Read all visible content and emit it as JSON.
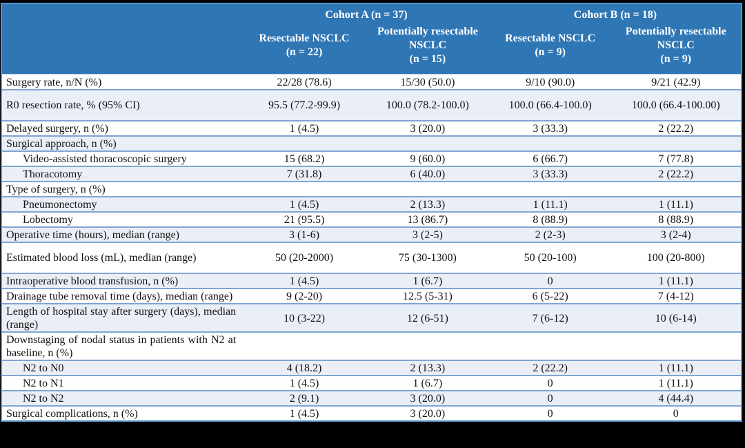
{
  "table": {
    "corner_label": "",
    "groups": [
      {
        "label": "Cohort A (n = 37)"
      },
      {
        "label": "Cohort B (n = 18)"
      }
    ],
    "columns": [
      {
        "label": "Resectable NSCLC\n(n = 22)"
      },
      {
        "label": "Potentially resectable NSCLC\n(n = 15)"
      },
      {
        "label": "Resectable NSCLC\n(n = 9)"
      },
      {
        "label": "Potentially resectable NSCLC\n(n = 9)"
      }
    ],
    "rows": [
      {
        "label": "Surgery rate, n/N (%)",
        "indent": false,
        "tall": false,
        "values": [
          "22/28 (78.6)",
          "15/30 (50.0)",
          "9/10 (90.0)",
          "9/21 (42.9)"
        ]
      },
      {
        "label": "R0 resection rate, % (95% CI)",
        "indent": false,
        "tall": true,
        "values": [
          "95.5 (77.2-99.9)",
          "100.0 (78.2-100.0)",
          "100.0 (66.4-100.0)",
          "100.0 (66.4-100.00)"
        ]
      },
      {
        "label": "Delayed surgery, n (%)",
        "indent": false,
        "tall": false,
        "values": [
          "1 (4.5)",
          "3 (20.0)",
          "3 (33.3)",
          "2 (22.2)"
        ]
      },
      {
        "label": "Surgical approach, n (%)",
        "indent": false,
        "tall": false,
        "values": [
          "",
          "",
          "",
          ""
        ]
      },
      {
        "label": "Video-assisted thoracoscopic surgery",
        "indent": true,
        "tall": false,
        "values": [
          "15 (68.2)",
          "9 (60.0)",
          "6 (66.7)",
          "7 (77.8)"
        ]
      },
      {
        "label": "Thoracotomy",
        "indent": true,
        "tall": false,
        "values": [
          "7 (31.8)",
          "6 (40.0)",
          "3 (33.3)",
          "2 (22.2)"
        ]
      },
      {
        "label": "Type of surgery, n (%)",
        "indent": false,
        "tall": false,
        "values": [
          "",
          "",
          "",
          ""
        ]
      },
      {
        "label": "Pneumonectomy",
        "indent": true,
        "tall": false,
        "values": [
          "1 (4.5)",
          "2 (13.3)",
          "1 (11.1)",
          "1 (11.1)"
        ]
      },
      {
        "label": "Lobectomy",
        "indent": true,
        "tall": false,
        "values": [
          "21 (95.5)",
          "13 (86.7)",
          "8 (88.9)",
          "8 (88.9)"
        ]
      },
      {
        "label": "Operative time (hours), median (range)",
        "indent": false,
        "tall": false,
        "values": [
          "3 (1-6)",
          "3 (2-5)",
          "2 (2-3)",
          "3 (2-4)"
        ]
      },
      {
        "label": "Estimated blood loss (mL), median (range)",
        "indent": false,
        "tall": true,
        "values": [
          "50 (20-2000)",
          "75 (30-1300)",
          "50 (20-100)",
          "100 (20-800)"
        ]
      },
      {
        "label": "Intraoperative blood transfusion, n (%)",
        "indent": false,
        "tall": false,
        "values": [
          "1 (4.5)",
          "1 (6.7)",
          "0",
          "1 (11.1)"
        ]
      },
      {
        "label": "Drainage tube removal time (days), median (range)",
        "indent": false,
        "tall": false,
        "values": [
          "9 (2-20)",
          "12.5 (5-31)",
          "6 (5-22)",
          "7 (4-12)"
        ]
      },
      {
        "label": "Length of hospital stay after surgery (days), median (range)",
        "indent": false,
        "tall": false,
        "values": [
          "10 (3-22)",
          "12 (6-51)",
          "7 (6-12)",
          "10 (6-14)"
        ]
      },
      {
        "label": "Downstaging of nodal status in patients with N2 at baseline, n (%)",
        "indent": false,
        "tall": false,
        "values": [
          "",
          "",
          "",
          ""
        ]
      },
      {
        "label": "N2 to N0",
        "indent": true,
        "tall": false,
        "values": [
          "4 (18.2)",
          "2 (13.3)",
          "2 (22.2)",
          "1 (11.1)"
        ]
      },
      {
        "label": "N2 to N1",
        "indent": true,
        "tall": false,
        "values": [
          "1 (4.5)",
          "1 (6.7)",
          "0",
          "1 (11.1)"
        ]
      },
      {
        "label": "N2 to N2",
        "indent": true,
        "tall": false,
        "values": [
          "2 (9.1)",
          "3 (20.0)",
          "0",
          "4 (44.4)"
        ]
      },
      {
        "label": "Surgical complications, n (%)",
        "indent": false,
        "tall": false,
        "values": [
          "1 (4.5)",
          "3 (20.0)",
          "0",
          "0"
        ]
      }
    ]
  },
  "colors": {
    "header_bg": "#2F76B5",
    "header_text": "#FFFFFF",
    "row_alt_bg": "#EAEFF7",
    "row_bg": "#FFFFFF",
    "grid_line": "#7FA5D3",
    "outer_border": "#5B93CE",
    "body_text": "#111111",
    "page_bg": "#000000"
  }
}
